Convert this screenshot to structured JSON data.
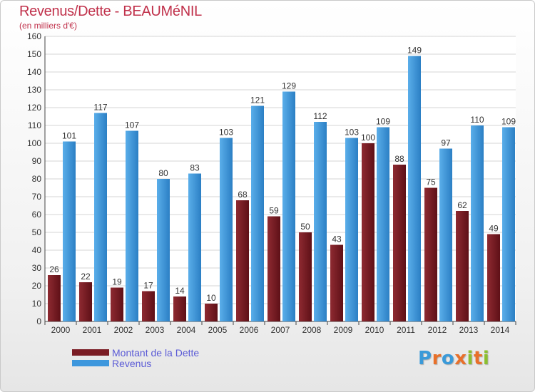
{
  "chart_data": {
    "type": "bar",
    "title": "Revenus/Dette - BEAUMéNIL",
    "subtitle": "(en milliers d'€)",
    "categories": [
      "2000",
      "2001",
      "2002",
      "2003",
      "2004",
      "2005",
      "2006",
      "2007",
      "2008",
      "2009",
      "2010",
      "2011",
      "2012",
      "2013",
      "2014"
    ],
    "series": [
      {
        "name": "Montant de la Dette",
        "color": "#7a1c24",
        "values": [
          26,
          22,
          19,
          17,
          14,
          10,
          68,
          59,
          50,
          43,
          100,
          88,
          75,
          62,
          49
        ]
      },
      {
        "name": "Revenus",
        "color": "#3d97dd",
        "values": [
          101,
          117,
          107,
          80,
          83,
          103,
          121,
          129,
          112,
          103,
          109,
          149,
          97,
          110,
          109
        ]
      }
    ],
    "ylim": [
      0,
      160
    ],
    "yticks": [
      0,
      10,
      20,
      30,
      40,
      50,
      60,
      70,
      80,
      90,
      100,
      110,
      120,
      130,
      140,
      150,
      160
    ],
    "grid": true,
    "legend_position": "bottom-left"
  },
  "logo": {
    "letters": [
      "P",
      "r",
      "o",
      "x",
      "i",
      "t",
      "i"
    ],
    "colors": [
      "#3a9ad9",
      "#e8702a",
      "#3a9ad9",
      "#e8702a",
      "#8bbf2f",
      "#e8702a",
      "#8bbf2f"
    ]
  }
}
